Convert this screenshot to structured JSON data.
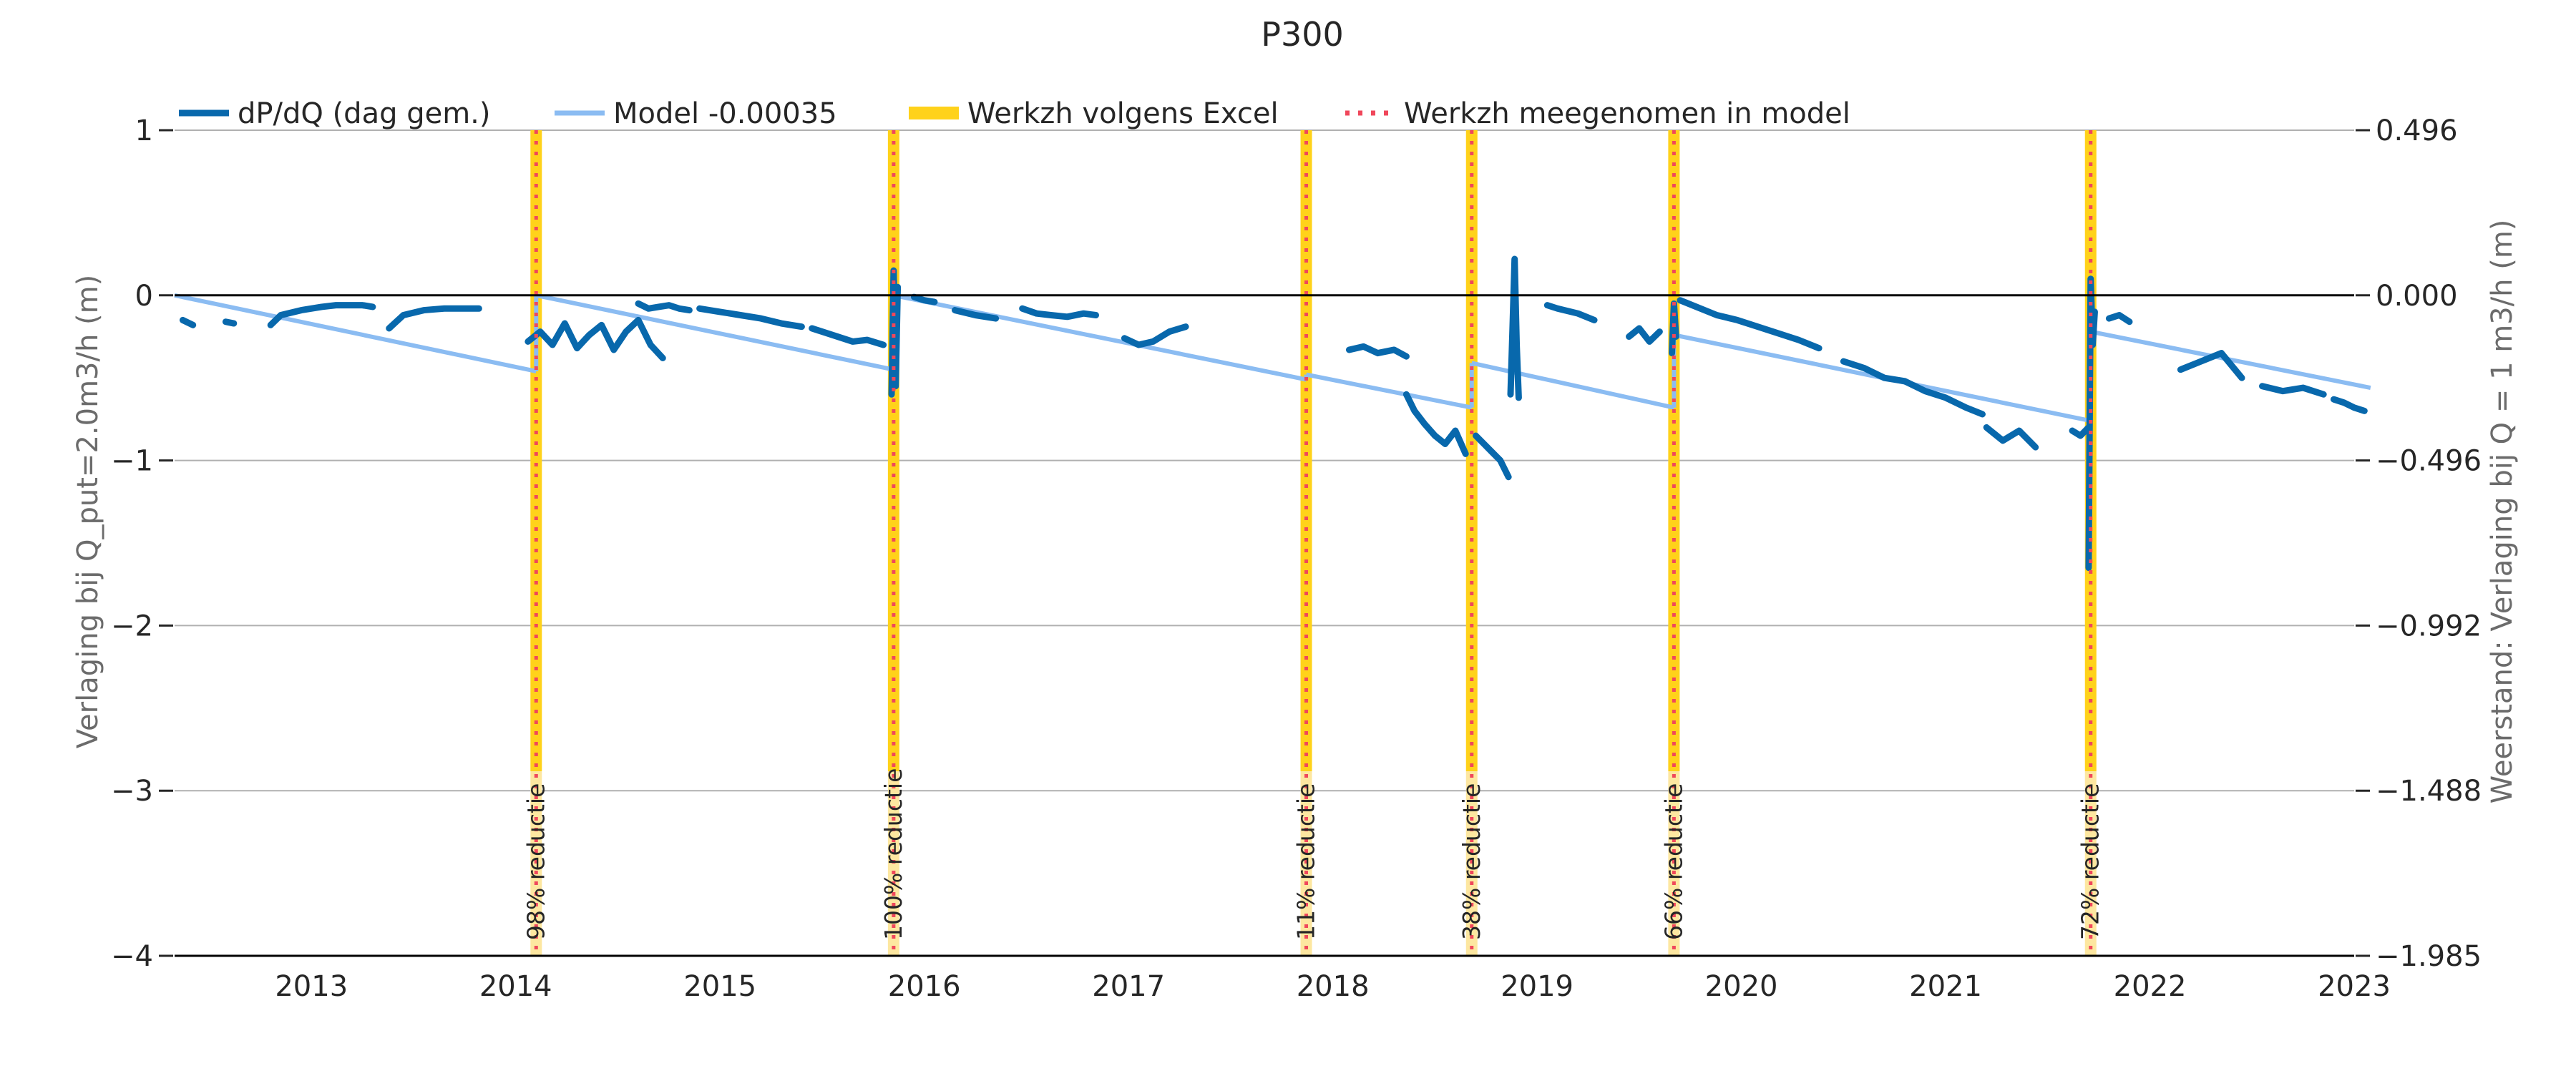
{
  "chart_data": {
    "type": "line",
    "title": "P300",
    "ylabel_left": "Verlaging bij Q_put=2.0m3/h (m)",
    "ylabel_right": "Weerstand: Verlaging bij Q = 1 m3/h (m)",
    "x_range": [
      2012.33,
      2023.0
    ],
    "y_range": [
      -4,
      1
    ],
    "y_ticks_left": [
      1,
      0,
      -1,
      -2,
      -3,
      -4
    ],
    "y_tick_labels_left": [
      "1",
      "0",
      "−1",
      "−2",
      "−3",
      "−4"
    ],
    "y_tick_labels_right": [
      "0.496",
      "0.000",
      "−0.496",
      "−0.992",
      "−1.488",
      "−1.985"
    ],
    "x_ticks": [
      2013,
      2014,
      2015,
      2016,
      2017,
      2018,
      2019,
      2020,
      2021,
      2022,
      2023
    ],
    "x_tick_labels": [
      "2013",
      "2014",
      "2015",
      "2016",
      "2017",
      "2018",
      "2019",
      "2020",
      "2021",
      "2022",
      "2023"
    ],
    "grid": "horizontal",
    "legend": {
      "placement": "top-left",
      "entries": [
        {
          "label": "dP/dQ (dag gem.)",
          "style": "solid-thick",
          "color": "#0868ac"
        },
        {
          "label": "Model -0.00035",
          "style": "solid",
          "color": "#8bbcf2"
        },
        {
          "label": "Werkzh volgens Excel",
          "style": "band",
          "color": "#ffd21a"
        },
        {
          "label": "Werkzh meegenomen in model",
          "style": "dotted",
          "color": "#f0475b"
        }
      ]
    },
    "colors": {
      "data": "#0868ac",
      "model": "#8bbcf2",
      "band": "#ffd21a",
      "band_light": "#fde7a0",
      "marker": "#f0475b",
      "zero_line": "#000000",
      "grid": "#b0b0b0"
    },
    "maintenance_events": [
      {
        "x": 2014.1,
        "label": "98% reductie"
      },
      {
        "x": 2015.85,
        "label": "100% reductie"
      },
      {
        "x": 2017.87,
        "label": "11% reductie"
      },
      {
        "x": 2018.68,
        "label": "38% reductie"
      },
      {
        "x": 2019.67,
        "label": "66% reductie"
      },
      {
        "x": 2021.71,
        "label": "72% reductie"
      }
    ],
    "series": [
      {
        "name": "Model -0.00035",
        "segments": [
          {
            "x": [
              2012.33,
              2014.1
            ],
            "y": [
              0.0,
              -0.46
            ]
          },
          {
            "x": [
              2014.1,
              2015.85
            ],
            "y": [
              0.0,
              -0.45
            ]
          },
          {
            "x": [
              2015.85,
              2017.87
            ],
            "y": [
              0.0,
              -0.51
            ]
          },
          {
            "x": [
              2017.87,
              2018.68
            ],
            "y": [
              -0.48,
              -0.68
            ]
          },
          {
            "x": [
              2018.68,
              2019.67
            ],
            "y": [
              -0.41,
              -0.68
            ]
          },
          {
            "x": [
              2019.67,
              2021.71
            ],
            "y": [
              -0.24,
              -0.76
            ]
          },
          {
            "x": [
              2021.71,
              2023.08
            ],
            "y": [
              -0.22,
              -0.56
            ]
          }
        ]
      },
      {
        "name": "dP/dQ (dag gem.)",
        "segments": [
          {
            "x": [
              2012.37,
              2012.42
            ],
            "y": [
              -0.15,
              -0.18
            ]
          },
          {
            "x": [
              2012.58,
              2012.62
            ],
            "y": [
              -0.16,
              -0.17
            ]
          },
          {
            "x": [
              2012.8,
              2012.85,
              2012.95,
              2013.05,
              2013.12,
              2013.18,
              2013.25,
              2013.3
            ],
            "y": [
              -0.18,
              -0.12,
              -0.09,
              -0.07,
              -0.06,
              -0.06,
              -0.06,
              -0.07
            ]
          },
          {
            "x": [
              2013.38,
              2013.45,
              2013.55,
              2013.65,
              2013.75,
              2013.82
            ],
            "y": [
              -0.2,
              -0.12,
              -0.09,
              -0.08,
              -0.08,
              -0.08
            ]
          },
          {
            "x": [
              2014.06,
              2014.12,
              2014.18,
              2014.24,
              2014.3,
              2014.36,
              2014.42,
              2014.48,
              2014.54,
              2014.6,
              2014.66,
              2014.72
            ],
            "y": [
              -0.28,
              -0.22,
              -0.3,
              -0.17,
              -0.32,
              -0.24,
              -0.18,
              -0.33,
              -0.22,
              -0.15,
              -0.3,
              -0.38
            ]
          },
          {
            "x": [
              2014.6,
              2014.65,
              2014.7,
              2014.75,
              2014.8,
              2014.85
            ],
            "y": [
              -0.05,
              -0.08,
              -0.07,
              -0.06,
              -0.08,
              -0.09
            ]
          },
          {
            "x": [
              2014.9,
              2015.0,
              2015.1,
              2015.2,
              2015.3,
              2015.4
            ],
            "y": [
              -0.08,
              -0.1,
              -0.12,
              -0.14,
              -0.17,
              -0.19
            ]
          },
          {
            "x": [
              2015.45,
              2015.55,
              2015.65,
              2015.72,
              2015.8
            ],
            "y": [
              -0.2,
              -0.24,
              -0.28,
              -0.27,
              -0.3
            ]
          },
          {
            "x": [
              2015.84,
              2015.85,
              2015.86,
              2015.87
            ],
            "y": [
              -0.6,
              0.15,
              -0.55,
              0.05
            ]
          },
          {
            "x": [
              2015.95,
              2016.0,
              2016.05
            ],
            "y": [
              -0.01,
              -0.03,
              -0.04
            ]
          },
          {
            "x": [
              2016.15,
              2016.25,
              2016.35
            ],
            "y": [
              -0.09,
              -0.12,
              -0.14
            ]
          },
          {
            "x": [
              2016.48,
              2016.55,
              2016.62,
              2016.7,
              2016.78,
              2016.84
            ],
            "y": [
              -0.08,
              -0.11,
              -0.12,
              -0.13,
              -0.11,
              -0.12
            ]
          },
          {
            "x": [
              2016.98,
              2017.05,
              2017.12,
              2017.2,
              2017.28
            ],
            "y": [
              -0.26,
              -0.3,
              -0.28,
              -0.22,
              -0.19
            ]
          },
          {
            "x": [
              2018.08,
              2018.15,
              2018.22,
              2018.3,
              2018.36
            ],
            "y": [
              -0.33,
              -0.31,
              -0.35,
              -0.33,
              -0.37
            ]
          },
          {
            "x": [
              2018.36,
              2018.4,
              2018.45,
              2018.5,
              2018.55,
              2018.6,
              2018.65
            ],
            "y": [
              -0.6,
              -0.7,
              -0.78,
              -0.85,
              -0.9,
              -0.82,
              -0.96
            ]
          },
          {
            "x": [
              2018.7,
              2018.74,
              2018.78,
              2018.82,
              2018.86
            ],
            "y": [
              -0.85,
              -0.9,
              -0.95,
              -1.0,
              -1.1
            ]
          },
          {
            "x": [
              2018.87,
              2018.88,
              2018.89,
              2018.9,
              2018.91
            ],
            "y": [
              -0.6,
              -0.2,
              0.22,
              -0.3,
              -0.62
            ]
          },
          {
            "x": [
              2019.05,
              2019.1,
              2019.2,
              2019.28
            ],
            "y": [
              -0.06,
              -0.08,
              -0.11,
              -0.15
            ]
          },
          {
            "x": [
              2019.45,
              2019.5,
              2019.55,
              2019.6
            ],
            "y": [
              -0.25,
              -0.2,
              -0.28,
              -0.22
            ]
          },
          {
            "x": [
              2019.66,
              2019.67,
              2019.68
            ],
            "y": [
              -0.35,
              -0.05,
              -0.25
            ]
          },
          {
            "x": [
              2019.7,
              2019.78,
              2019.88,
              2019.98,
              2020.08,
              2020.18,
              2020.28,
              2020.38
            ],
            "y": [
              -0.03,
              -0.07,
              -0.12,
              -0.15,
              -0.19,
              -0.23,
              -0.27,
              -0.32
            ]
          },
          {
            "x": [
              2020.5,
              2020.6,
              2020.7,
              2020.8,
              2020.9,
              2021.0,
              2021.1,
              2021.18
            ],
            "y": [
              -0.4,
              -0.44,
              -0.5,
              -0.52,
              -0.58,
              -0.62,
              -0.68,
              -0.72
            ]
          },
          {
            "x": [
              2021.2,
              2021.28,
              2021.36,
              2021.44
            ],
            "y": [
              -0.8,
              -0.88,
              -0.82,
              -0.92
            ]
          },
          {
            "x": [
              2021.62,
              2021.66,
              2021.7
            ],
            "y": [
              -0.82,
              -0.85,
              -0.8
            ]
          },
          {
            "x": [
              2021.7,
              2021.71,
              2021.72,
              2021.73
            ],
            "y": [
              -1.65,
              0.1,
              -0.3,
              -0.1
            ]
          },
          {
            "x": [
              2021.8,
              2021.85,
              2021.9
            ],
            "y": [
              -0.14,
              -0.12,
              -0.16
            ]
          },
          {
            "x": [
              2022.15,
              2022.25,
              2022.35,
              2022.45
            ],
            "y": [
              -0.45,
              -0.4,
              -0.35,
              -0.5
            ]
          },
          {
            "x": [
              2022.55,
              2022.65,
              2022.75,
              2022.85
            ],
            "y": [
              -0.55,
              -0.58,
              -0.56,
              -0.6
            ]
          },
          {
            "x": [
              2022.9,
              2022.95,
              2023.0,
              2023.05
            ],
            "y": [
              -0.63,
              -0.65,
              -0.68,
              -0.7
            ]
          }
        ]
      }
    ]
  }
}
